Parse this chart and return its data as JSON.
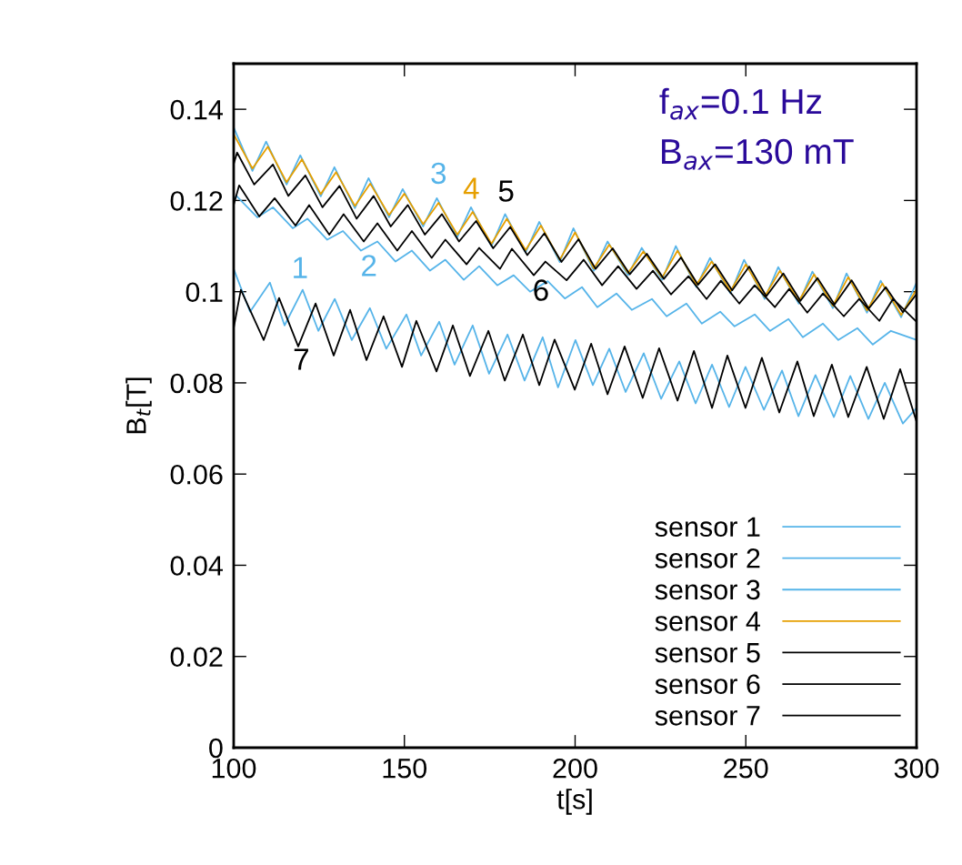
{
  "chart_data": {
    "type": "line",
    "xlabel": "t[s]",
    "ylabel": "B$_{t}$[T]",
    "xlim": [
      100,
      300
    ],
    "xticks": [
      100,
      150,
      200,
      250,
      300
    ],
    "ylim": [
      0,
      0.15
    ],
    "yticks": [
      0,
      0.02,
      0.04,
      0.06,
      0.08,
      0.1,
      0.12,
      0.14
    ],
    "grid": false,
    "legend": "bottom right",
    "line_style": "solid",
    "marker": "none",
    "series": [
      {
        "name": "sensor 1",
        "color": "#56b4e9",
        "x": [
          100,
          104.8,
          110.6,
          114.9,
          120.2,
          124.8,
          129.6,
          134.6,
          139.9,
          144.7,
          150.6,
          154.9,
          160.2,
          164.7,
          170,
          174.8,
          180.2,
          185.2,
          190.5,
          195,
          200.1,
          205.2,
          210,
          214.8,
          220.1,
          225.2,
          230.5,
          235.3,
          240.1,
          245.1,
          249.9,
          255.3,
          260.6,
          265.4,
          270.4,
          275.8,
          280.6,
          285.9,
          290.7,
          296,
          300
        ],
        "values": [
          0.105,
          0.0956,
          0.102,
          0.0926,
          0.1004,
          0.0914,
          0.0984,
          0.0894,
          0.0964,
          0.0875,
          0.095,
          0.086,
          0.0934,
          0.084,
          0.0926,
          0.082,
          0.0906,
          0.0805,
          0.09,
          0.079,
          0.0894,
          0.0795,
          0.0875,
          0.078,
          0.0865,
          0.0765,
          0.0847,
          0.0755,
          0.084,
          0.0747,
          0.0835,
          0.0741,
          0.0827,
          0.0727,
          0.0817,
          0.0725,
          0.0815,
          0.0721,
          0.08,
          0.0711,
          0.0745
        ]
      },
      {
        "name": "sensor 2",
        "color": "#56b4e9",
        "x": [
          100,
          100.8,
          106.9,
          111.5,
          117.3,
          121.6,
          127.4,
          132,
          137.3,
          142.1,
          147.4,
          152.2,
          157.5,
          162,
          167.4,
          171.9,
          177.2,
          182,
          186.8,
          192,
          197,
          202,
          206.5,
          212.1,
          216.6,
          222.5,
          226.8,
          232.6,
          237.1,
          242.5,
          246.7,
          252.6,
          257.1,
          262.5,
          266.7,
          272.6,
          277.1,
          282.7,
          287.2,
          292.5,
          300
        ],
        "values": [
          0.12,
          0.121,
          0.1163,
          0.1185,
          0.1139,
          0.116,
          0.1114,
          0.1133,
          0.109,
          0.111,
          0.1066,
          0.109,
          0.1046,
          0.107,
          0.1026,
          0.1056,
          0.1014,
          0.1036,
          0.1,
          0.1023,
          0.0985,
          0.101,
          0.0966,
          0.0996,
          0.096,
          0.0984,
          0.0946,
          0.0974,
          0.093,
          0.0956,
          0.0924,
          0.095,
          0.0914,
          0.094,
          0.09,
          0.093,
          0.0894,
          0.092,
          0.0884,
          0.0914,
          0.0894
        ]
      },
      {
        "name": "sensor 3",
        "color": "#56b4e9",
        "x": [
          100,
          105.5,
          109.5,
          115.5,
          119.5,
          125.5,
          129.5,
          135.5,
          139.5,
          145.5,
          149.5,
          155.5,
          159.5,
          165.5,
          169.5,
          175.5,
          179.5,
          185.5,
          189.5,
          195.5,
          199.5,
          205.5,
          209.5,
          215.5,
          219.5,
          225.5,
          229.5,
          235.5,
          239.5,
          245.5,
          249.5,
          255.5,
          259.5,
          265.5,
          269.5,
          275.5,
          279.5,
          285.5,
          289.5,
          295.5,
          300
        ],
        "values": [
          0.136,
          0.1265,
          0.1329,
          0.1235,
          0.1299,
          0.1209,
          0.1273,
          0.1183,
          0.1249,
          0.1163,
          0.1225,
          0.1143,
          0.1205,
          0.112,
          0.1185,
          0.11,
          0.117,
          0.1086,
          0.1153,
          0.1065,
          0.1139,
          0.1046,
          0.111,
          0.1036,
          0.1096,
          0.1026,
          0.11,
          0.101,
          0.1074,
          0.0996,
          0.107,
          0.0984,
          0.1054,
          0.0974,
          0.1044,
          0.0964,
          0.104,
          0.0954,
          0.1024,
          0.0944,
          0.102
        ]
      },
      {
        "name": "sensor 4",
        "color": "#e69f00",
        "x": [
          100,
          105.5,
          110,
          115.5,
          120,
          125.5,
          130,
          135.5,
          140,
          145.5,
          150,
          155.5,
          160,
          165.5,
          170,
          175.5,
          180,
          185.5,
          190,
          195.5,
          200,
          205.5,
          210,
          215.5,
          220,
          225.5,
          230,
          235.5,
          240,
          245.5,
          250,
          255.5,
          260,
          265.5,
          270,
          275.5,
          280,
          285.5,
          290,
          295.5,
          300
        ],
        "values": [
          0.1345,
          0.127,
          0.1318,
          0.124,
          0.129,
          0.1214,
          0.1262,
          0.1188,
          0.1237,
          0.1168,
          0.1215,
          0.1148,
          0.1195,
          0.1125,
          0.1175,
          0.1105,
          0.116,
          0.1091,
          0.1145,
          0.107,
          0.113,
          0.1051,
          0.1103,
          0.1041,
          0.1088,
          0.1031,
          0.109,
          0.1015,
          0.1066,
          0.1001,
          0.106,
          0.0989,
          0.1046,
          0.0979,
          0.1038,
          0.0969,
          0.1032,
          0.0959,
          0.1018,
          0.0949,
          0.1005
        ]
      },
      {
        "name": "sensor 5",
        "color": "#000000",
        "x": [
          100,
          101,
          106,
          111.5,
          116,
          121,
          126,
          131,
          136,
          141,
          146,
          151,
          156,
          161,
          166,
          171,
          176,
          181,
          186,
          191,
          196,
          201,
          206,
          211,
          216,
          221,
          226,
          231,
          236,
          241,
          246,
          251,
          256,
          261,
          266,
          271,
          276,
          281,
          286,
          291,
          296,
          300
        ],
        "values": [
          0.128,
          0.1305,
          0.1235,
          0.1279,
          0.121,
          0.1255,
          0.1185,
          0.1232,
          0.116,
          0.121,
          0.1143,
          0.119,
          0.1125,
          0.117,
          0.111,
          0.1155,
          0.1095,
          0.1142,
          0.108,
          0.1128,
          0.1065,
          0.1115,
          0.105,
          0.1095,
          0.1038,
          0.1083,
          0.1028,
          0.1075,
          0.1015,
          0.106,
          0.1003,
          0.1055,
          0.099,
          0.104,
          0.098,
          0.103,
          0.0972,
          0.1025,
          0.0963,
          0.101,
          0.0955,
          0.0995
        ]
      },
      {
        "name": "sensor 6",
        "color": "#000000",
        "x": [
          100,
          101.6,
          107.5,
          112,
          118.1,
          122.1,
          128,
          132.2,
          138.1,
          142.1,
          147.9,
          152.2,
          158,
          162,
          168.2,
          171.9,
          178,
          181.5,
          187.9,
          191.3,
          197.5,
          202.5,
          207.9,
          212.6,
          218,
          222.8,
          228.1,
          233.2,
          238.5,
          242.7,
          248.1,
          252.6,
          258.5,
          262.7,
          268,
          272.6,
          278.7,
          283.2,
          289.1,
          293.1,
          300
        ],
        "values": [
          0.119,
          0.1233,
          0.1165,
          0.1205,
          0.1145,
          0.119,
          0.1125,
          0.117,
          0.111,
          0.115,
          0.109,
          0.1133,
          0.1074,
          0.1114,
          0.106,
          0.1096,
          0.105,
          0.1094,
          0.1036,
          0.1066,
          0.1025,
          0.107,
          0.1014,
          0.1056,
          0.1006,
          0.1046,
          0.0994,
          0.1034,
          0.0984,
          0.1024,
          0.0974,
          0.1014,
          0.0966,
          0.1006,
          0.0954,
          0.0996,
          0.0946,
          0.0984,
          0.0936,
          0.0984,
          0.0934
        ]
      },
      {
        "name": "sensor 7",
        "color": "#000000",
        "x": [
          100,
          102.1,
          108.8,
          113.3,
          118.9,
          124,
          129.3,
          134.1,
          138.9,
          143.9,
          149.3,
          153.5,
          159.4,
          164.2,
          169.2,
          174.6,
          179.4,
          184.7,
          189.5,
          194,
          199.9,
          204.7,
          209.5,
          214.5,
          219.8,
          224.6,
          230,
          234.8,
          240.1,
          244.6,
          249.9,
          254.7,
          259.8,
          265.1,
          269.9,
          275.2,
          280,
          285.4,
          290.4,
          295.2,
          300
        ],
        "values": [
          0.092,
          0.1004,
          0.0894,
          0.0986,
          0.088,
          0.0974,
          0.086,
          0.096,
          0.085,
          0.0946,
          0.0835,
          0.0936,
          0.0825,
          0.0926,
          0.0815,
          0.0914,
          0.0805,
          0.0906,
          0.0795,
          0.0895,
          0.0785,
          0.0886,
          0.0775,
          0.088,
          0.0767,
          0.0876,
          0.0761,
          0.087,
          0.0745,
          0.086,
          0.0745,
          0.0855,
          0.0735,
          0.0847,
          0.0727,
          0.084,
          0.0725,
          0.0835,
          0.0721,
          0.083,
          0.0715
        ]
      }
    ],
    "annotations": [
      "1",
      "2",
      "3",
      "4",
      "5",
      "6",
      "7",
      "f$_{ax}$=0.1 Hz",
      "B$_{ax}$=130 mT"
    ]
  }
}
